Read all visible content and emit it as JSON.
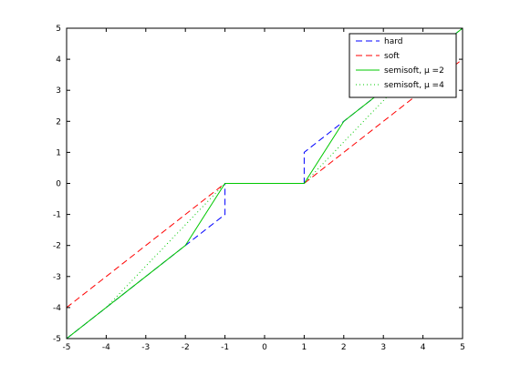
{
  "chart_data": {
    "type": "line",
    "title": "",
    "xlabel": "",
    "ylabel": "",
    "xlim": [
      -5,
      5
    ],
    "ylim": [
      -5,
      5
    ],
    "xticks": [
      -5,
      -4,
      -3,
      -2,
      -1,
      0,
      1,
      2,
      3,
      4,
      5
    ],
    "yticks": [
      -5,
      -4,
      -3,
      -2,
      -1,
      0,
      1,
      2,
      3,
      4,
      5
    ],
    "xtick_labels": [
      "-5",
      "-4",
      "-3",
      "-2",
      "-1",
      "0",
      "1",
      "2",
      "3",
      "4",
      "5"
    ],
    "ytick_labels": [
      "-5",
      "-4",
      "-3",
      "-2",
      "-1",
      "0",
      "1",
      "2",
      "3",
      "4",
      "5"
    ],
    "grid": false,
    "legend_position": "top-right",
    "series": [
      {
        "name": "hard",
        "color": "#0000ff",
        "style": "dashed",
        "x": [
          -5,
          -2,
          -1,
          -1,
          1,
          1,
          2,
          5
        ],
        "y": [
          -5,
          -2,
          -1,
          0,
          0,
          1,
          2,
          5
        ]
      },
      {
        "name": "soft",
        "color": "#ff0000",
        "style": "dashed",
        "x": [
          -5,
          -1,
          1,
          5
        ],
        "y": [
          -4,
          0,
          0,
          4
        ]
      },
      {
        "name": "semisoft, μ =2",
        "color": "#00c800",
        "style": "solid",
        "x": [
          -5,
          -2,
          -1,
          1,
          2,
          5
        ],
        "y": [
          -5,
          -2,
          0,
          0,
          2,
          5
        ]
      },
      {
        "name": "semisoft, μ =4",
        "color": "#00c800",
        "style": "dotted",
        "x": [
          -5,
          -4,
          -1,
          1,
          4,
          5
        ],
        "y": [
          -5,
          -4,
          0,
          0,
          4,
          5
        ]
      }
    ]
  }
}
